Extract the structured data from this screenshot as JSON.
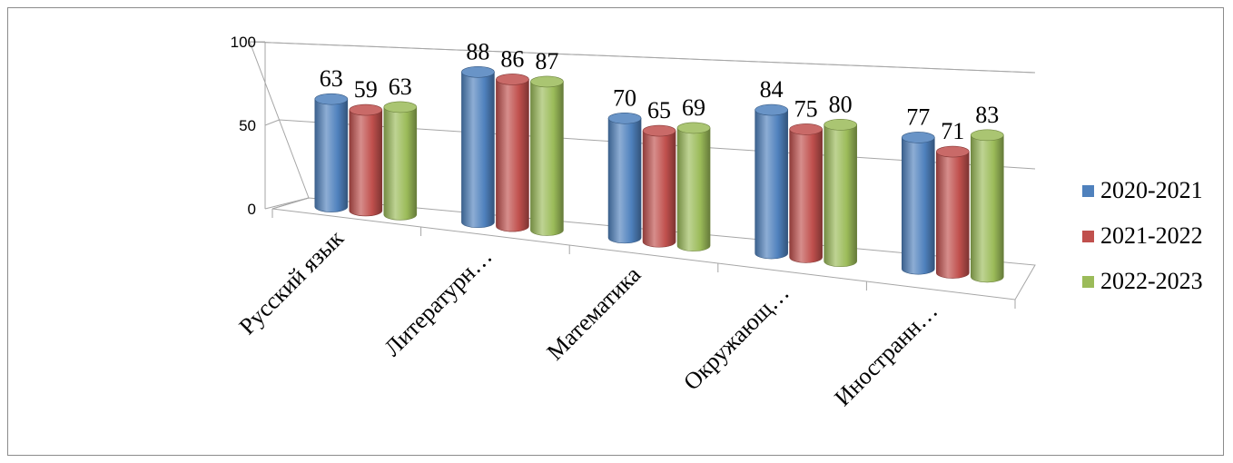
{
  "chart_data": {
    "type": "bar",
    "style": "3d-cylinder",
    "categories": [
      "Русский язык",
      "Литературн…",
      "Математика",
      "Окружающ…",
      "Иностранн…"
    ],
    "series": [
      {
        "name": "2020-2021",
        "color": "#4f81bd",
        "values": [
          63,
          88,
          70,
          84,
          77
        ]
      },
      {
        "name": "2021-2022",
        "color": "#c0504d",
        "values": [
          59,
          86,
          65,
          75,
          71
        ]
      },
      {
        "name": "2022-2023",
        "color": "#9bbb59",
        "values": [
          63,
          87,
          69,
          80,
          83
        ]
      }
    ],
    "y_ticks": [
      "0",
      "50",
      "100"
    ],
    "ylim": [
      0,
      100
    ],
    "grid": true,
    "legend_position": "right"
  }
}
